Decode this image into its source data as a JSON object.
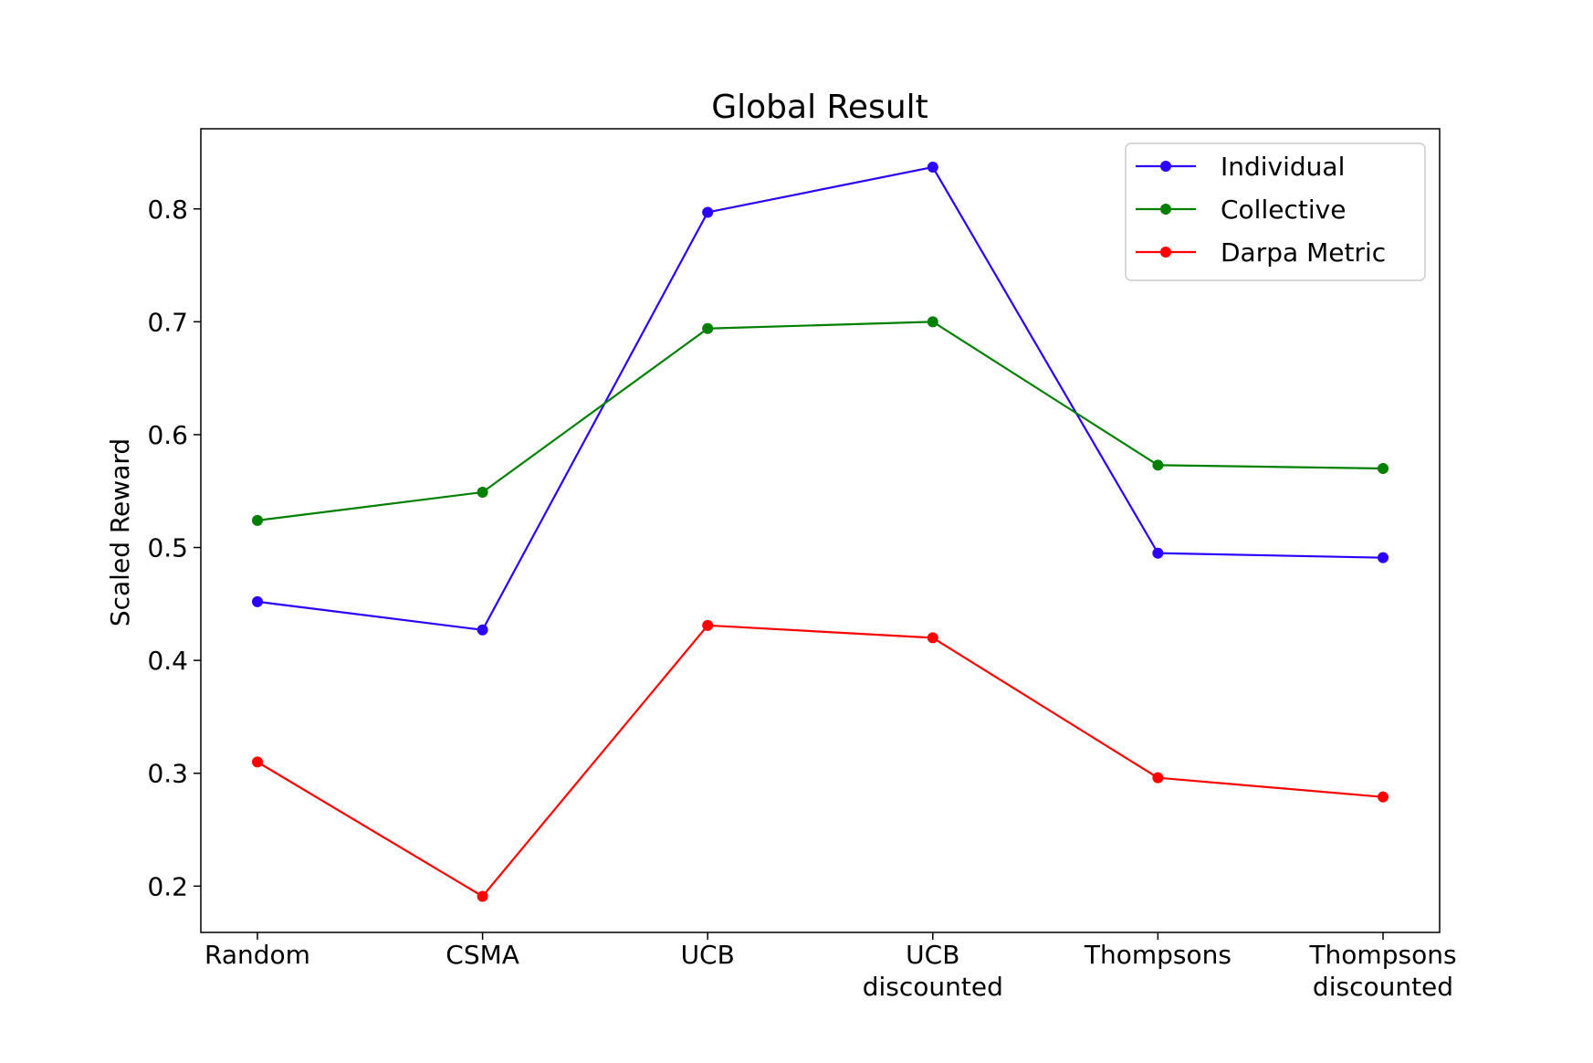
{
  "chart_data": {
    "type": "line",
    "title": "Global Result",
    "xlabel": "",
    "ylabel": "Scaled Reward",
    "categories": [
      [
        "Random"
      ],
      [
        "CSMA"
      ],
      [
        "UCB"
      ],
      [
        "UCB",
        "discounted"
      ],
      [
        "Thompsons"
      ],
      [
        "Thompsons",
        "discounted"
      ]
    ],
    "ylim": [
      0.159,
      0.871
    ],
    "yticks": [
      "0.2",
      "0.3",
      "0.4",
      "0.5",
      "0.6",
      "0.7",
      "0.8"
    ],
    "grid": false,
    "legend_position": "top-right",
    "series": [
      {
        "name": "Individual",
        "color": "#2b00ff",
        "values": [
          0.452,
          0.427,
          0.797,
          0.837,
          0.495,
          0.491
        ]
      },
      {
        "name": "Collective",
        "color": "#008000",
        "values": [
          0.524,
          0.549,
          0.694,
          0.7,
          0.573,
          0.57
        ]
      },
      {
        "name": "Darpa Metric",
        "color": "#ff0000",
        "values": [
          0.31,
          0.191,
          0.431,
          0.42,
          0.296,
          0.279
        ]
      }
    ]
  }
}
